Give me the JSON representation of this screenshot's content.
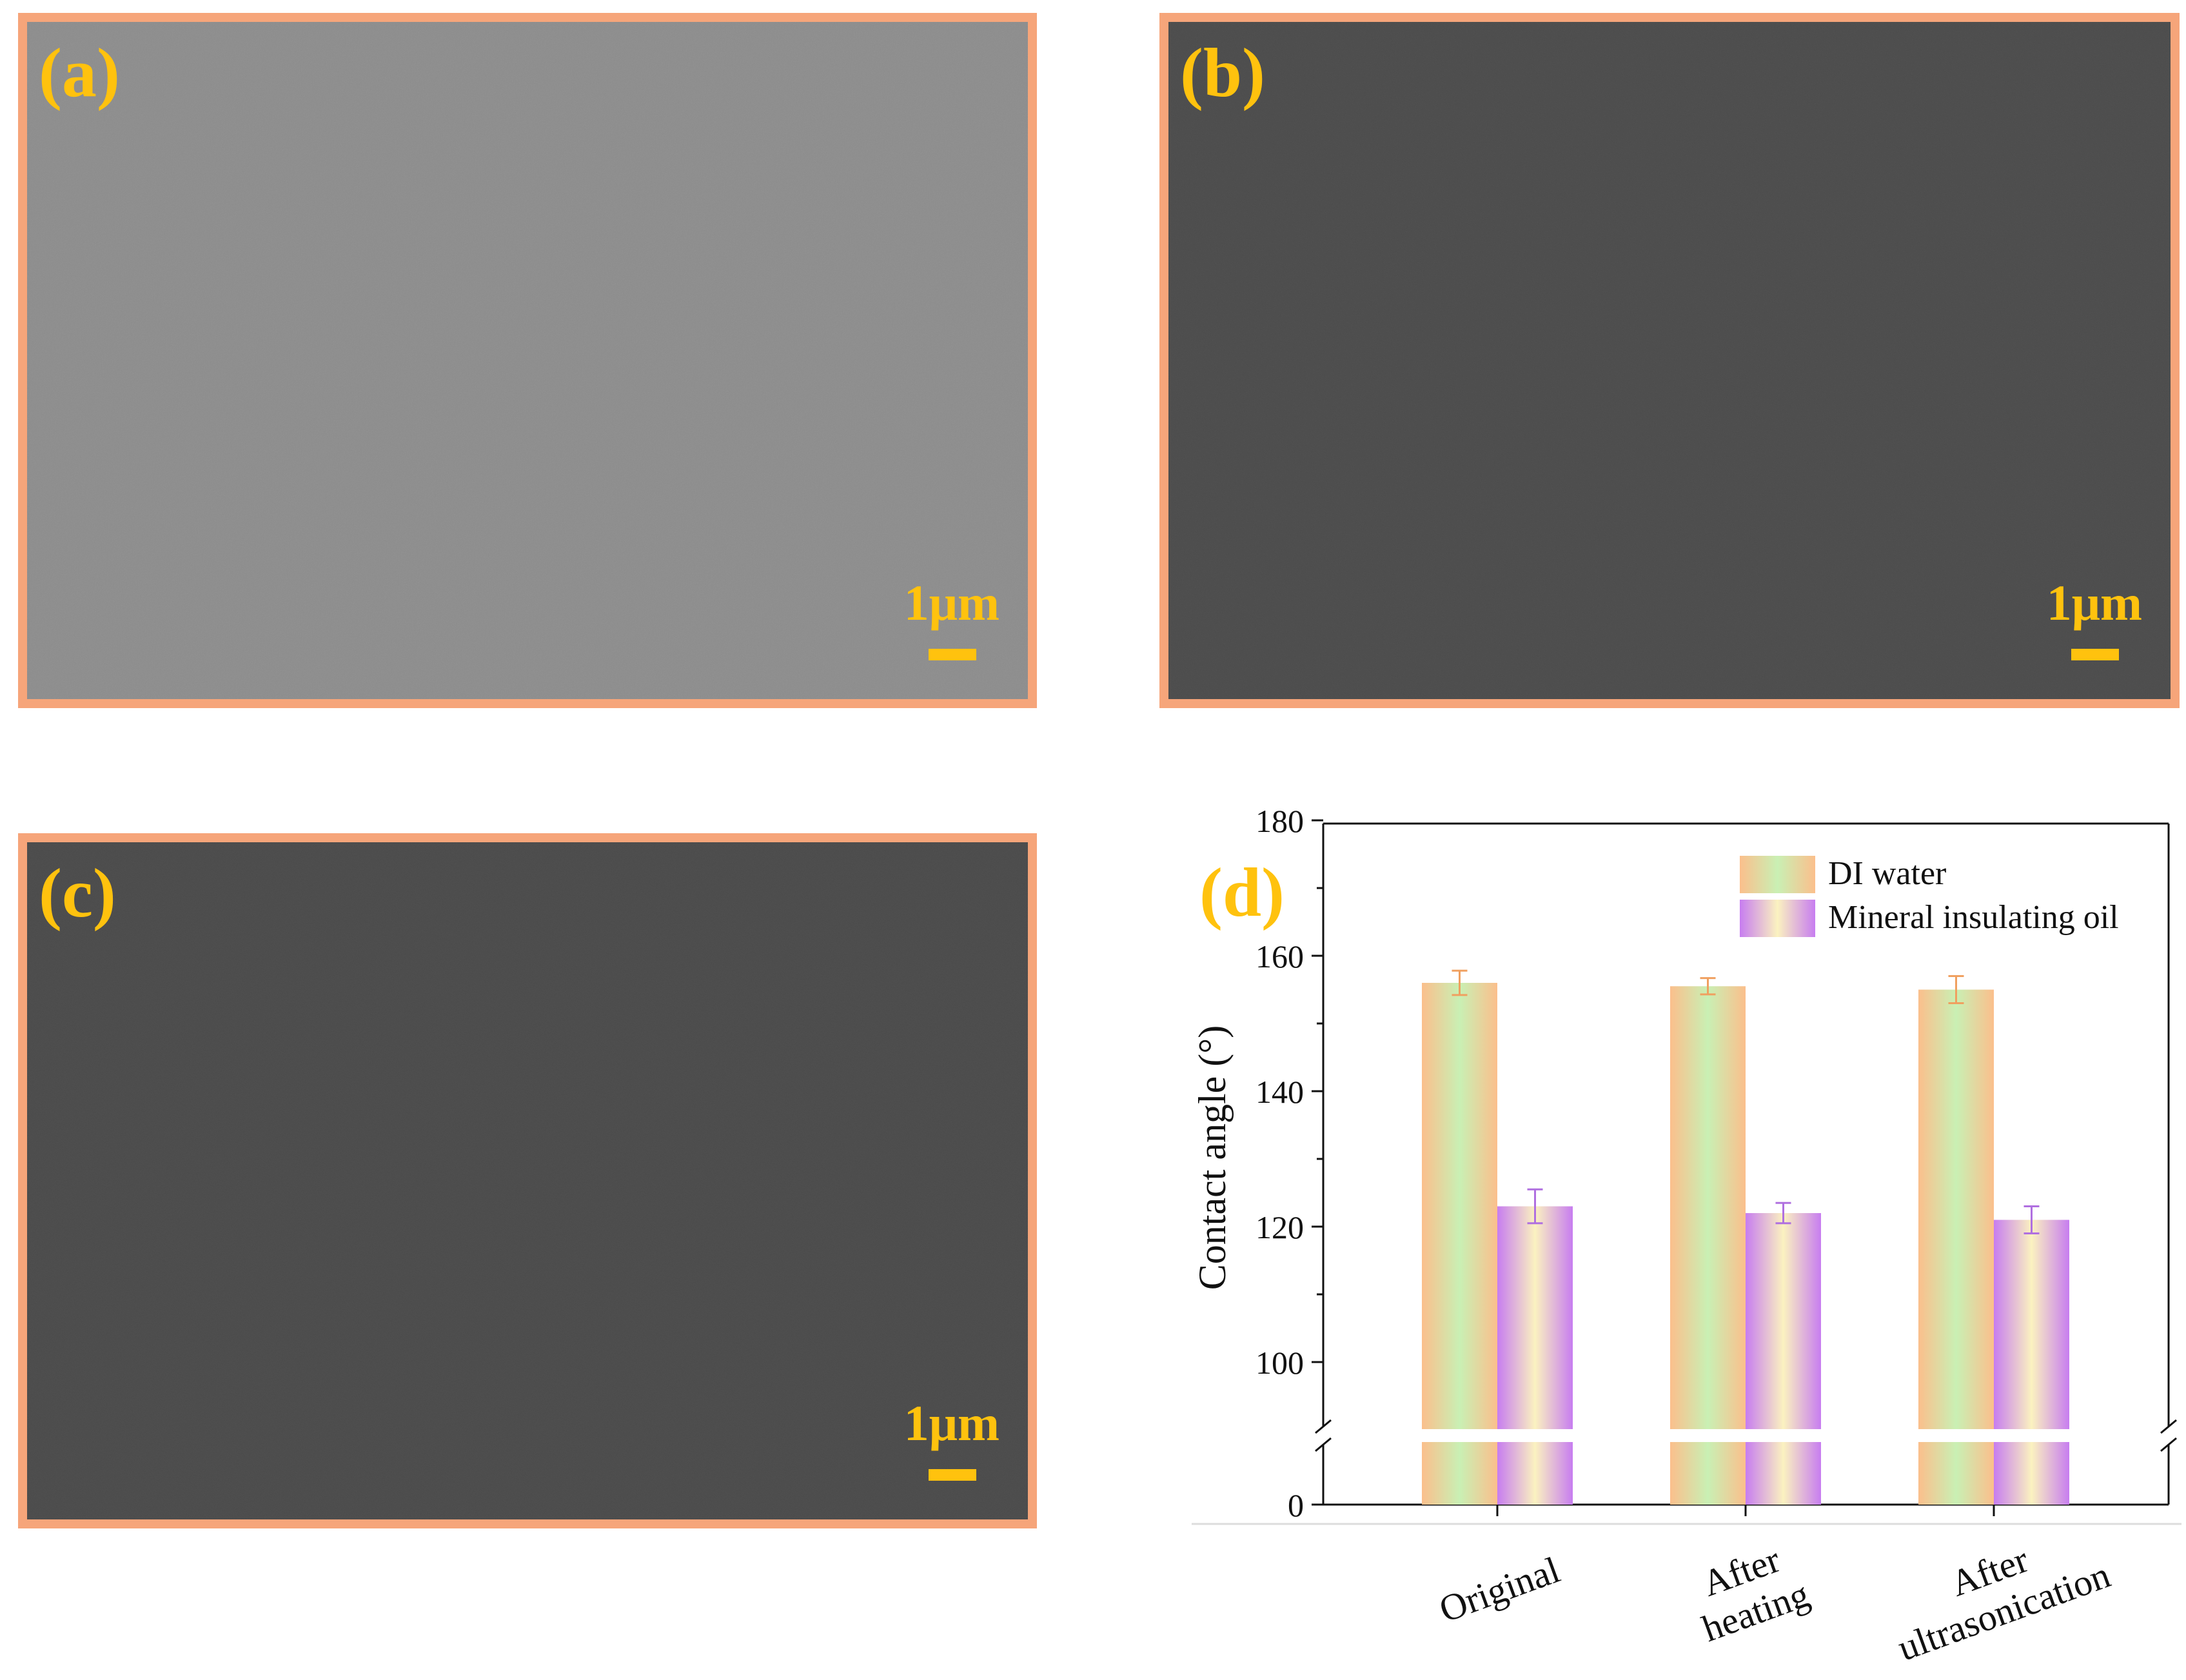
{
  "panels": {
    "a": {
      "label": "(a)",
      "scale": "1μm",
      "background": "#8c8c8c"
    },
    "b": {
      "label": "(b)",
      "scale": "1μm",
      "background": "#4b4b4b"
    },
    "c": {
      "label": "(c)",
      "scale": "1μm",
      "background": "#4a4a4a"
    }
  },
  "colors": {
    "panel_border": "#f6a57a",
    "label_text": "#ffc20e"
  },
  "chart_data": {
    "panel_label": "(d)",
    "type": "bar",
    "categories": [
      [
        "Original"
      ],
      [
        "After",
        "heating"
      ],
      [
        "After",
        "ultrasonication"
      ]
    ],
    "ylabel": "Contact angle (°)",
    "xlabel": "",
    "yaxis_break": [
      0,
      90
    ],
    "ylim": [
      0,
      180
    ],
    "yticks": [
      0,
      100,
      120,
      140,
      160,
      180
    ],
    "legend_position": "top-right",
    "grid": false,
    "series": [
      {
        "name": "DI water",
        "values": [
          156,
          155.5,
          155
        ],
        "errors": [
          1.8,
          1.2,
          2.0
        ],
        "gradient": [
          "#fbbf8c",
          "#c9f0b4",
          "#fbbf8c"
        ],
        "error_color": "#f0a060"
      },
      {
        "name": "Mineral insulating oil",
        "values": [
          123,
          122,
          121
        ],
        "errors": [
          2.5,
          1.5,
          2.0
        ],
        "gradient": [
          "#c77df0",
          "#fbf2c0",
          "#c77df0"
        ],
        "error_color": "#b070e0"
      }
    ]
  }
}
